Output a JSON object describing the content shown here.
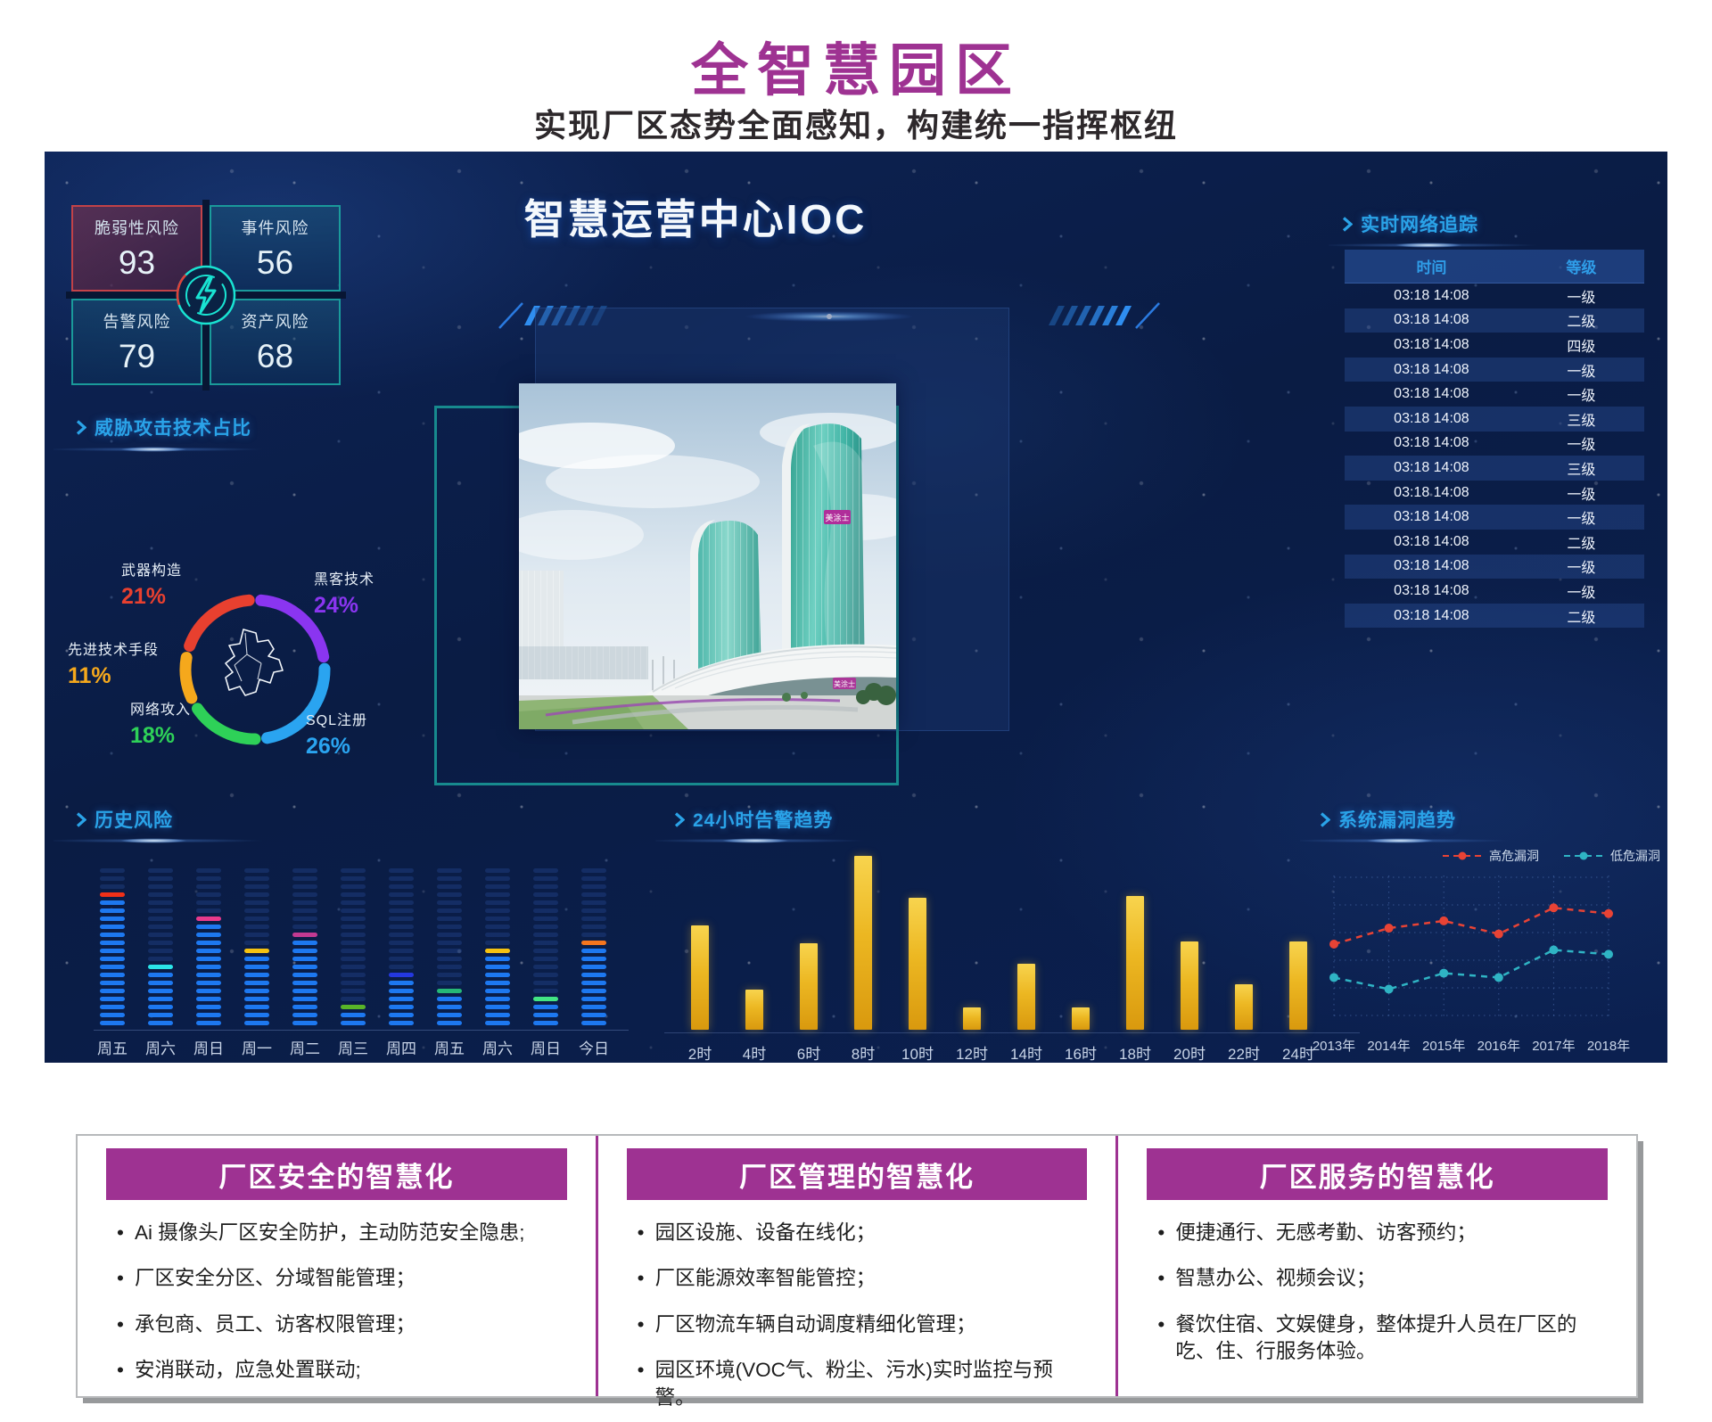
{
  "header": {
    "title": "全智慧园区",
    "subtitle": "实现厂区态势全面感知，构建统一指挥枢纽"
  },
  "dashboard": {
    "ioc_title": "智慧运营中心IOC",
    "risk_cards": [
      {
        "label": "脆弱性风险",
        "value": "93"
      },
      {
        "label": "事件风险",
        "value": "56"
      },
      {
        "label": "告警风险",
        "value": "79"
      },
      {
        "label": "资产风险",
        "value": "68"
      }
    ],
    "sections": {
      "threat": {
        "title": "威胁攻击技术占比"
      },
      "network": {
        "title": "实时网络追踪",
        "columns": [
          "时间",
          "等级"
        ],
        "rows": [
          {
            "time": "03:18 14:08",
            "level": "一级"
          },
          {
            "time": "03:18 14:08",
            "level": "二级"
          },
          {
            "time": "03:18 14:08",
            "level": "四级"
          },
          {
            "time": "03:18 14:08",
            "level": "一级"
          },
          {
            "time": "03:18 14:08",
            "level": "一级"
          },
          {
            "time": "03:18 14:08",
            "level": "三级"
          },
          {
            "time": "03:18 14:08",
            "level": "一级"
          },
          {
            "time": "03:18 14:08",
            "level": "三级"
          },
          {
            "time": "03:18 14:08",
            "level": "一级"
          },
          {
            "time": "03:18 14:08",
            "level": "一级"
          },
          {
            "time": "03:18 14:08",
            "level": "二级"
          },
          {
            "time": "03:18 14:08",
            "level": "一级"
          },
          {
            "time": "03:18 14:08",
            "level": "一级"
          },
          {
            "time": "03:18 14:08",
            "level": "二级"
          }
        ]
      },
      "history": {
        "title": "历史风险"
      },
      "alert24": {
        "title": "24小时告警趋势"
      },
      "vuln": {
        "title": "系统漏洞趋势"
      }
    }
  },
  "building_label": "美涂士",
  "cards": [
    {
      "title": "厂区安全的智慧化",
      "bullets": [
        "Ai 摄像头厂区安全防护，主动防范安全隐患;",
        "厂区安全分区、分域智能管理；",
        "承包商、员工、访客权限管理；",
        "安消联动，应急处置联动;"
      ]
    },
    {
      "title": "厂区管理的智慧化",
      "bullets": [
        "园区设施、设备在线化；",
        "厂区能源效率智能管控；",
        "厂区物流车辆自动调度精细化管理；",
        "园区环境(VOC气、粉尘、污水)实时监控与预警。"
      ]
    },
    {
      "title": "厂区服务的智慧化",
      "bullets": [
        "便捷通行、无感考勤、访客预约；",
        "智慧办公、视频会议；",
        "餐饮住宿、文娱健身，整体提升人员在厂区的吃、住、行服务体验。"
      ]
    }
  ],
  "chart_data": [
    {
      "id": "threat-donut",
      "type": "pie",
      "title": "威胁攻击技术占比",
      "legend_position": "around",
      "slices": [
        {
          "label": "黑客技术",
          "value": 24,
          "pct": "24%",
          "color": "#8a35f0"
        },
        {
          "label": "SQL注册",
          "value": 26,
          "pct": "26%",
          "color": "#2aa4f0"
        },
        {
          "label": "网络攻入",
          "value": 18,
          "pct": "18%",
          "color": "#2ed158"
        },
        {
          "label": "先进技术手段",
          "value": 11,
          "pct": "11%",
          "color": "#f5a81c"
        },
        {
          "label": "武器构造",
          "value": 21,
          "pct": "21%",
          "color": "#e8402f"
        }
      ]
    },
    {
      "id": "history-risk",
      "type": "bar",
      "style": "segmented-dash-columns",
      "title": "历史风险",
      "categories": [
        "周五",
        "周六",
        "周日",
        "周一",
        "周二",
        "周三",
        "周四",
        "周五",
        "周六",
        "周日",
        "今日"
      ],
      "values": [
        17,
        8,
        14,
        10,
        12,
        3,
        7,
        5,
        10,
        4,
        11
      ],
      "cap_colors": [
        "#f03018",
        "#2be4e8",
        "#e83a8c",
        "#f5c211",
        "#c23a92",
        "#58b428",
        "#2438e0",
        "#26b876",
        "#f5c211",
        "#42e584",
        "#f5761e"
      ],
      "max_segments": 20,
      "fill_color": "#1d78f0",
      "track_color": "rgba(45,90,175,0.28)"
    },
    {
      "id": "alert-24h",
      "type": "bar",
      "title": "24小时告警趋势",
      "categories": [
        "2时",
        "4时",
        "6时",
        "8时",
        "10时",
        "12时",
        "14时",
        "16时",
        "18时",
        "20时",
        "22时",
        "24时"
      ],
      "values": [
        60,
        23,
        50,
        100,
        76,
        13,
        38,
        13,
        77,
        51,
        26,
        51
      ],
      "ylim": [
        0,
        100
      ],
      "bar_gradient": [
        "#f8d44e",
        "#d9990e"
      ]
    },
    {
      "id": "vuln-trend",
      "type": "line",
      "title": "系统漏洞趋势",
      "line_style": "dashed",
      "grid": "dotted",
      "legend_position": "top-right",
      "x": [
        "2013年",
        "2014年",
        "2015年",
        "2016年",
        "2017年",
        "2018年"
      ],
      "series": [
        {
          "name": "高危漏洞",
          "color": "#e84335",
          "values": [
            54,
            65,
            70,
            61,
            79,
            75
          ]
        },
        {
          "name": "低危漏洞",
          "color": "#2fb4c4",
          "values": [
            31,
            23,
            34,
            31,
            50,
            47
          ]
        }
      ]
    }
  ]
}
